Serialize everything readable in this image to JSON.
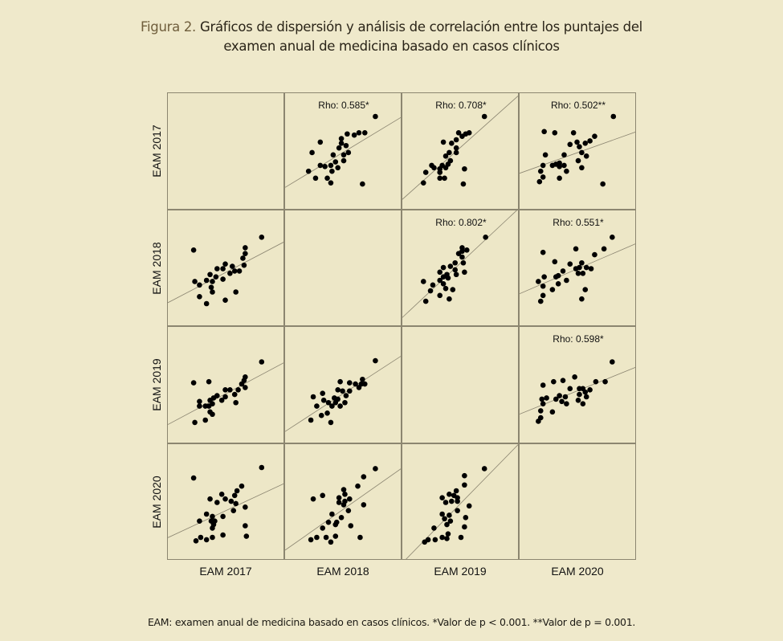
{
  "title": {
    "figure_label": "Figura 2.",
    "line1": "Gráficos de dispersión y análisis de correlación entre los puntajes del",
    "line2": "examen anual de medicina basado en casos clínicos"
  },
  "footnote": "EAM: examen anual de medicina basado en casos clínicos. *Valor de p < 0.001. **Valor de p = 0.001.",
  "chart_data": {
    "type": "scatter",
    "subtype": "scatterplot-matrix",
    "variables": [
      "EAM 2017",
      "EAM 2018",
      "EAM 2019",
      "EAM 2020"
    ],
    "axis_range": [
      0,
      100
    ],
    "grid": false,
    "fit_line": "linear regression",
    "correlations": [
      {
        "pair": [
          "EAM 2017",
          "EAM 2018"
        ],
        "label": "Rho: 0.585*",
        "rho": 0.585
      },
      {
        "pair": [
          "EAM 2017",
          "EAM 2019"
        ],
        "label": "Rho: 0.708*",
        "rho": 0.708
      },
      {
        "pair": [
          "EAM 2017",
          "EAM 2020"
        ],
        "label": "Rho: 0.502**",
        "rho": 0.502
      },
      {
        "pair": [
          "EAM 2018",
          "EAM 2019"
        ],
        "label": "Rho: 0.802*",
        "rho": 0.802
      },
      {
        "pair": [
          "EAM 2018",
          "EAM 2020"
        ],
        "label": "Rho: 0.551*",
        "rho": 0.551
      },
      {
        "pair": [
          "EAM 2019",
          "EAM 2020"
        ],
        "label": "Rho: 0.598*",
        "rho": 0.598
      }
    ],
    "panels": [
      {
        "x_var": 0,
        "y_var": 1,
        "points": [
          [
            22,
            66
          ],
          [
            80,
            77
          ],
          [
            66,
            68
          ],
          [
            66,
            63
          ],
          [
            64,
            59
          ],
          [
            65,
            53
          ],
          [
            55,
            52
          ],
          [
            49,
            54
          ],
          [
            47,
            50
          ],
          [
            42,
            50
          ],
          [
            57,
            48
          ],
          [
            61,
            48
          ],
          [
            53,
            46
          ],
          [
            36,
            45
          ],
          [
            41,
            43
          ],
          [
            47,
            41
          ],
          [
            33,
            40
          ],
          [
            38,
            39
          ],
          [
            23,
            39
          ],
          [
            27,
            36
          ],
          [
            37,
            34
          ],
          [
            38,
            30
          ],
          [
            58,
            30
          ],
          [
            27,
            26
          ],
          [
            49,
            23
          ],
          [
            33,
            20
          ]
        ]
      },
      {
        "x_var": 0,
        "y_var": 2,
        "points": [
          [
            22,
            52
          ],
          [
            35,
            53
          ],
          [
            80,
            70
          ],
          [
            66,
            57
          ],
          [
            65,
            54
          ],
          [
            63,
            51
          ],
          [
            66,
            48
          ],
          [
            60,
            46
          ],
          [
            53,
            46
          ],
          [
            49,
            46
          ],
          [
            57,
            42
          ],
          [
            42,
            41
          ],
          [
            39,
            39
          ],
          [
            36,
            37
          ],
          [
            49,
            40
          ],
          [
            46,
            37
          ],
          [
            27,
            36
          ],
          [
            27,
            32
          ],
          [
            38,
            34
          ],
          [
            32,
            32
          ],
          [
            35,
            32
          ],
          [
            58,
            35
          ],
          [
            36,
            27
          ],
          [
            38,
            25
          ],
          [
            32,
            20
          ],
          [
            23,
            18
          ]
        ]
      },
      {
        "x_var": 0,
        "y_var": 3,
        "points": [
          [
            22,
            71
          ],
          [
            80,
            80
          ],
          [
            63,
            64
          ],
          [
            59,
            60
          ],
          [
            57,
            56
          ],
          [
            46,
            57
          ],
          [
            49,
            53
          ],
          [
            36,
            53
          ],
          [
            42,
            50
          ],
          [
            54,
            51
          ],
          [
            58,
            49
          ],
          [
            66,
            46
          ],
          [
            56,
            43
          ],
          [
            33,
            40
          ],
          [
            38,
            38
          ],
          [
            47,
            38
          ],
          [
            27,
            34
          ],
          [
            37,
            34
          ],
          [
            40,
            34
          ],
          [
            39,
            31
          ],
          [
            38,
            28
          ],
          [
            66,
            30
          ],
          [
            47,
            22
          ],
          [
            67,
            21
          ],
          [
            28,
            20
          ],
          [
            38,
            20
          ],
          [
            33,
            18
          ],
          [
            24,
            17
          ]
        ]
      },
      {
        "x_var": 1,
        "y_var": 2,
        "points": [
          [
            77,
            71
          ],
          [
            66,
            55
          ],
          [
            68,
            51
          ],
          [
            65,
            51
          ],
          [
            63,
            48
          ],
          [
            60,
            51
          ],
          [
            55,
            52
          ],
          [
            47,
            53
          ],
          [
            45,
            46
          ],
          [
            49,
            45
          ],
          [
            55,
            45
          ],
          [
            52,
            41
          ],
          [
            32,
            43
          ],
          [
            24,
            40
          ],
          [
            42,
            39
          ],
          [
            45,
            38
          ],
          [
            33,
            37
          ],
          [
            37,
            35
          ],
          [
            43,
            35
          ],
          [
            51,
            35
          ],
          [
            40,
            32
          ],
          [
            47,
            32
          ],
          [
            27,
            32
          ],
          [
            36,
            26
          ],
          [
            31,
            24
          ],
          [
            22,
            20
          ],
          [
            39,
            18
          ]
        ]
      },
      {
        "x_var": 1,
        "y_var": 3,
        "points": [
          [
            24,
            53
          ],
          [
            32,
            56
          ],
          [
            77,
            79
          ],
          [
            67,
            72
          ],
          [
            62,
            64
          ],
          [
            50,
            61
          ],
          [
            51,
            57
          ],
          [
            46,
            54
          ],
          [
            55,
            53
          ],
          [
            51,
            51
          ],
          [
            46,
            50
          ],
          [
            50,
            48
          ],
          [
            67,
            48
          ],
          [
            54,
            43
          ],
          [
            40,
            40
          ],
          [
            48,
            37
          ],
          [
            37,
            33
          ],
          [
            44,
            33
          ],
          [
            43,
            31
          ],
          [
            56,
            30
          ],
          [
            32,
            28
          ],
          [
            43,
            21
          ],
          [
            64,
            20
          ],
          [
            27,
            20
          ],
          [
            35,
            20
          ],
          [
            22,
            18
          ],
          [
            39,
            16
          ]
        ]
      },
      {
        "x_var": 2,
        "y_var": 3,
        "points": [
          [
            70,
            79
          ],
          [
            53,
            73
          ],
          [
            53,
            65
          ],
          [
            46,
            60
          ],
          [
            40,
            57
          ],
          [
            44,
            56
          ],
          [
            34,
            54
          ],
          [
            47,
            54
          ],
          [
            47,
            51
          ],
          [
            42,
            51
          ],
          [
            37,
            50
          ],
          [
            57,
            47
          ],
          [
            47,
            43
          ],
          [
            34,
            40
          ],
          [
            40,
            39
          ],
          [
            54,
            37
          ],
          [
            36,
            36
          ],
          [
            41,
            34
          ],
          [
            38,
            31
          ],
          [
            53,
            29
          ],
          [
            27,
            28
          ],
          [
            39,
            23
          ],
          [
            34,
            20
          ],
          [
            50,
            20
          ],
          [
            38,
            19
          ],
          [
            28,
            18
          ],
          [
            22,
            18
          ],
          [
            19,
            16
          ]
        ]
      }
    ]
  },
  "colors": {
    "background": "#efe9cb",
    "panel": "#ede7c7",
    "point": "#000000",
    "fit_line": "#8a8470",
    "figure_label": "#6f5e3c"
  }
}
